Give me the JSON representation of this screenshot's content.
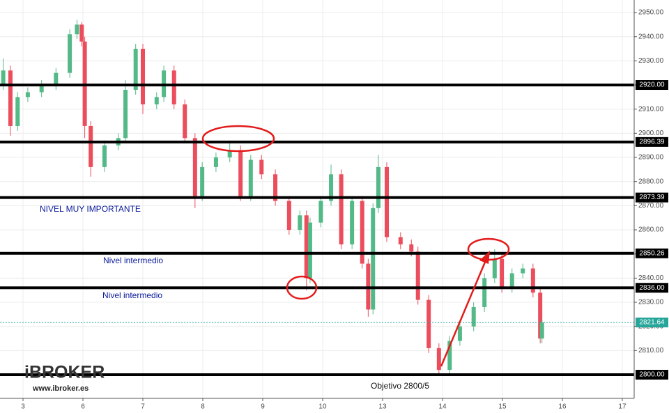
{
  "chart_data": {
    "type": "candlestick",
    "x": [
      -0.33,
      -0.21,
      -0.09,
      0.08,
      0.31,
      0.55,
      0.78,
      0.9,
      0.98,
      1.03,
      1.13,
      1.36,
      1.59,
      1.71,
      1.88,
      2.0,
      2.23,
      2.35,
      2.52,
      2.7,
      2.87,
      2.99,
      3.22,
      3.45,
      3.63,
      3.8,
      3.98,
      4.21,
      4.44,
      4.62,
      4.73,
      4.79,
      4.97,
      5.14,
      5.31,
      5.49,
      5.66,
      5.76,
      5.84,
      5.93,
      6.07,
      6.3,
      6.48,
      6.59,
      6.77,
      6.94,
      7.12,
      7.29,
      7.52,
      7.7,
      7.87,
      7.99,
      8.16,
      8.34,
      8.51,
      8.63,
      8.66
    ],
    "open": [
      2920,
      2926,
      2903,
      2915,
      2917,
      2920,
      2925,
      2941,
      2945,
      2938,
      2903,
      2886,
      2895,
      2898,
      2918,
      2935,
      2912,
      2915,
      2926,
      2912,
      2898,
      2874,
      2886,
      2890,
      2893,
      2874,
      2889,
      2883,
      2872,
      2860,
      2866,
      2840,
      2863,
      2872,
      2883,
      2854,
      2872,
      2846,
      2827,
      2869,
      2886,
      2857,
      2854,
      2851,
      2831,
      2811,
      2802,
      2814,
      2820,
      2828,
      2840,
      2848,
      2836,
      2842,
      2844,
      2834,
      2815
    ],
    "high": [
      2931,
      2928,
      2917,
      2919,
      2922,
      2927,
      2943,
      2947,
      2946,
      2940,
      2905,
      2897,
      2900,
      2922,
      2937,
      2937,
      2917,
      2928,
      2928,
      2914,
      2900,
      2888,
      2892,
      2897,
      2895,
      2891,
      2891,
      2885,
      2874,
      2868,
      2868,
      2865,
      2874,
      2887,
      2885,
      2874,
      2874,
      2848,
      2871,
      2891,
      2888,
      2859,
      2856,
      2853,
      2833,
      2813,
      2816,
      2822,
      2830,
      2842,
      2852,
      2850,
      2844,
      2846,
      2846,
      2836,
      2823
    ],
    "low": [
      2918,
      2899,
      2901,
      2913,
      2915,
      2918,
      2923,
      2939,
      2936,
      2898,
      2882,
      2884,
      2893,
      2896,
      2916,
      2908,
      2910,
      2913,
      2910,
      2896,
      2869,
      2872,
      2884,
      2888,
      2872,
      2872,
      2881,
      2870,
      2858,
      2858,
      2835,
      2838,
      2861,
      2870,
      2852,
      2852,
      2844,
      2824,
      2825,
      2867,
      2855,
      2852,
      2849,
      2829,
      2809,
      2800,
      2800,
      2812,
      2818,
      2826,
      2838,
      2834,
      2834,
      2840,
      2832,
      2813,
      2813
    ],
    "close": [
      2926,
      2903,
      2915,
      2917,
      2920,
      2925,
      2941,
      2945,
      2938,
      2903,
      2886,
      2895,
      2898,
      2918,
      2935,
      2912,
      2915,
      2926,
      2912,
      2898,
      2874,
      2886,
      2890,
      2893,
      2874,
      2889,
      2883,
      2872,
      2860,
      2866,
      2840,
      2863,
      2872,
      2883,
      2854,
      2872,
      2846,
      2827,
      2869,
      2886,
      2857,
      2854,
      2851,
      2831,
      2811,
      2802,
      2814,
      2820,
      2828,
      2840,
      2848,
      2836,
      2842,
      2844,
      2834,
      2815,
      2821.64
    ],
    "up_color": "#53b987",
    "down_color": "#eb4d5c",
    "xlim": [
      -0.384,
      10.198
    ],
    "xticks": [
      {
        "value": 0,
        "label": "3"
      },
      {
        "value": 1,
        "label": "6"
      },
      {
        "value": 2,
        "label": "7"
      },
      {
        "value": 3,
        "label": "8"
      },
      {
        "value": 4,
        "label": "9"
      },
      {
        "value": 5,
        "label": "10"
      },
      {
        "value": 6,
        "label": "13"
      },
      {
        "value": 7,
        "label": "14"
      },
      {
        "value": 8,
        "label": "15"
      },
      {
        "value": 9,
        "label": "16"
      },
      {
        "value": 10,
        "label": "17"
      }
    ],
    "ylim": [
      2790.2,
      2955.2
    ],
    "yticks": [
      {
        "value": 2810,
        "label": "2810.00"
      },
      {
        "value": 2820,
        "label": "2820.00"
      },
      {
        "value": 2830,
        "label": "2830.00"
      },
      {
        "value": 2840,
        "label": "2840.00"
      },
      {
        "value": 2850,
        "label": "2850.00"
      },
      {
        "value": 2860,
        "label": "2860.00"
      },
      {
        "value": 2870,
        "label": "2870.00"
      },
      {
        "value": 2880,
        "label": "2880.00"
      },
      {
        "value": 2890,
        "label": "2890.00"
      },
      {
        "value": 2900,
        "label": "2900.00"
      },
      {
        "value": 2910,
        "label": "2910.00"
      },
      {
        "value": 2920,
        "label": "2920.00"
      },
      {
        "value": 2930,
        "label": "2930.00"
      },
      {
        "value": 2940,
        "label": "2940.00"
      },
      {
        "value": 2950,
        "label": "2950.00"
      }
    ],
    "grid": true,
    "levels": [
      {
        "value": 2920,
        "label": "2920.00"
      },
      {
        "value": 2896.39,
        "label": "2896.39"
      },
      {
        "value": 2873.39,
        "label": "2873.39"
      },
      {
        "value": 2850.26,
        "label": "2850.26"
      },
      {
        "value": 2836,
        "label": "2836.00"
      },
      {
        "value": 2800,
        "label": "2800.00"
      }
    ],
    "last_price": {
      "value": 2821.64,
      "label": "2821.64"
    },
    "last_color": "#26a69a",
    "annotations": [
      "NIVEL MUY IMPORTANTE",
      "Nivel intermedio",
      "Nivel intermedio",
      "Objetivo 2800/5"
    ]
  },
  "brand": {
    "logo": "iBROKER",
    "url": "www.ibroker.es"
  }
}
